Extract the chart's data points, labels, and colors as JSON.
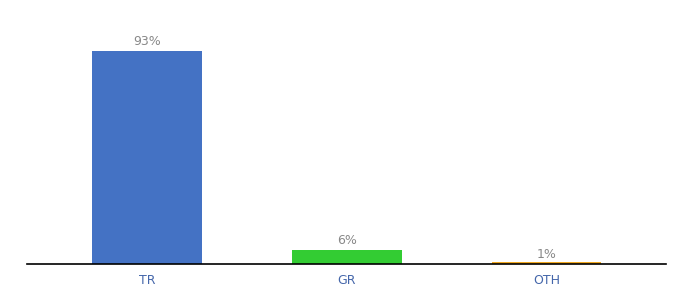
{
  "categories": [
    "TR",
    "GR",
    "OTH"
  ],
  "values": [
    93,
    6,
    1
  ],
  "bar_colors": [
    "#4472c4",
    "#33cc33",
    "#f0a820"
  ],
  "labels": [
    "93%",
    "6%",
    "1%"
  ],
  "ylim": [
    0,
    105
  ],
  "background_color": "#ffffff",
  "label_fontsize": 9,
  "tick_fontsize": 9,
  "bar_width": 0.55,
  "xlim": [
    -0.6,
    2.6
  ]
}
